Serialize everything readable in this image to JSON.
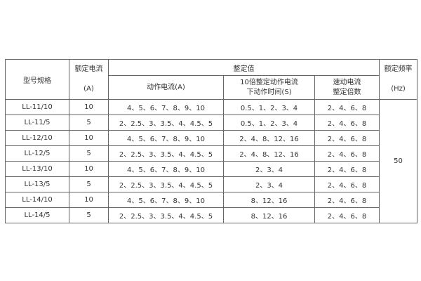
{
  "headers": {
    "model": "型号规格",
    "rated_current": [
      "额定电流",
      "(A)"
    ],
    "setting_value": "整定值",
    "action_current": "动作电流(A)",
    "action_time": [
      "10倍整定动作电流",
      "下动作时间(S)"
    ],
    "quick_multiple": [
      "速动电流",
      "整定倍数"
    ],
    "rated_frequency": [
      "额定频率",
      "(Hz)"
    ]
  },
  "rows": [
    [
      "LL-11/10",
      "10",
      "4、5、6、7、8、9、10",
      "0.5、1、2、3、4",
      "2、4、6、8"
    ],
    [
      "LL-11/5",
      "5",
      "2、2.5、3、3.5、4、4.5、5",
      "0.5、1、2、3、4",
      "2、4、6、8"
    ],
    [
      "LL-12/10",
      "10",
      "4、5、6、7、8、9、10",
      "2、4、8、12、16",
      "2、4、6、8"
    ],
    [
      "LL-12/5",
      "5",
      "2、2.5、3、3.5、4、4.5、5",
      "2、4、8、12、16",
      "2、4、6、8"
    ],
    [
      "LL-13/10",
      "10",
      "4、5、6、7、8、9、10",
      "2、3、4",
      "2、4、6、8"
    ],
    [
      "LL-13/5",
      "5",
      "2、2.5、3、3.5、4、4.5、5",
      "2、3、4",
      "2、4、6、8"
    ],
    [
      "LL-14/10",
      "10",
      "4、5、6、7、8、9、10",
      "8、12、16",
      "2、4、6、8"
    ],
    [
      "LL-14/5",
      "5",
      "2、2.5、3、3.5、4、4.5、5",
      "8、12、16",
      "2、4、6、8"
    ]
  ],
  "frequency": "50"
}
